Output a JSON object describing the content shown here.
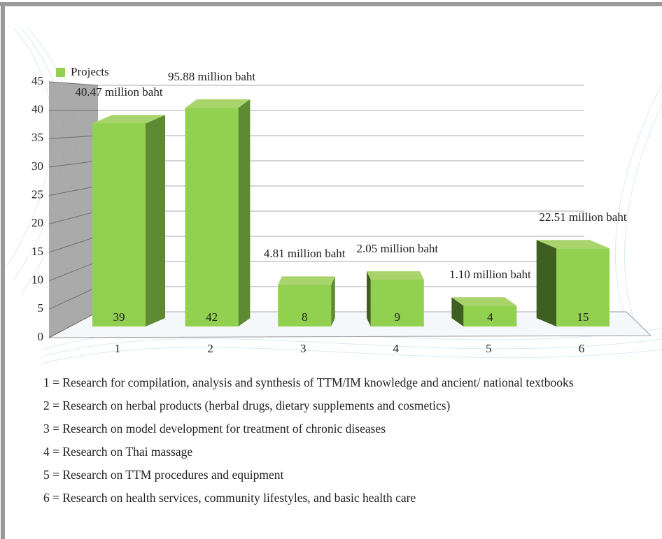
{
  "chart_data": {
    "type": "bar3d",
    "categories": [
      "1",
      "2",
      "3",
      "4",
      "5",
      "6"
    ],
    "series": [
      {
        "name": "Projects",
        "color": "#92d050",
        "values": [
          39,
          42,
          8,
          9,
          4,
          15
        ]
      }
    ],
    "annotations": [
      "40.47 million baht",
      "95.88 million baht",
      "4.81 million baht",
      "2.05 million baht",
      "1.10 million baht",
      "22.51 million baht"
    ],
    "ylim": [
      0,
      45
    ],
    "yticks": [
      0,
      5,
      10,
      15,
      20,
      25,
      30,
      35,
      40,
      45
    ],
    "grid": true,
    "legend": "top-left"
  },
  "notes": [
    "1 = Research for compilation, analysis and synthesis of TTM/IM knowledge and ancient/ national textbooks",
    "2 = Research on herbal products (herbal drugs, dietary supplements and cosmetics)",
    "3 = Research on model development for treatment of chronic diseases",
    "4 = Research on Thai massage",
    "5 = Research on TTM procedures and equipment",
    "6 = Research on health services, community lifestyles, and basic health care"
  ]
}
